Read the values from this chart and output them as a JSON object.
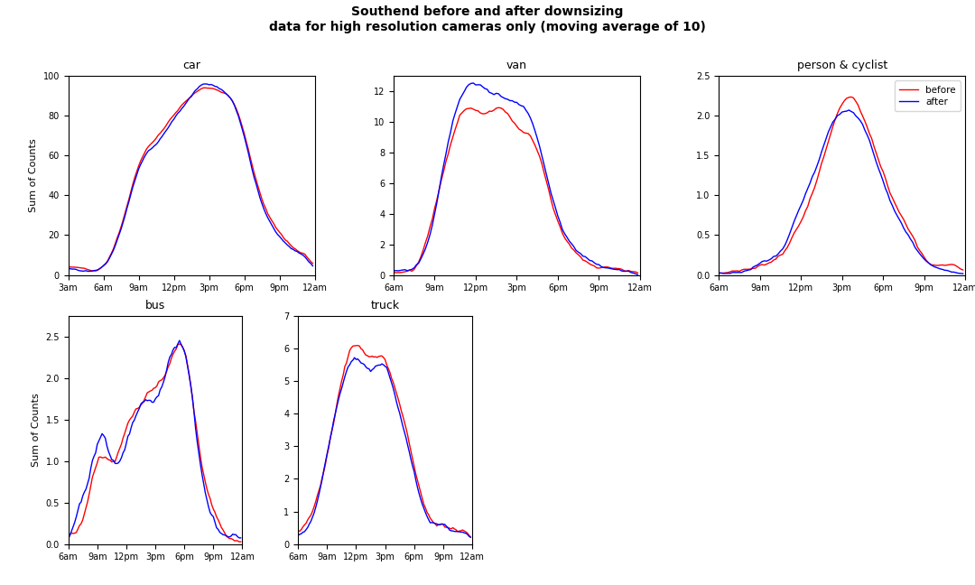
{
  "title_line1": "Southend before and after downsizing",
  "title_line2": "data for high resolution cameras only (moving average of 10)",
  "subplots": [
    "car",
    "van",
    "person & cyclist",
    "bus",
    "truck"
  ],
  "ylabel": "Sum of Counts",
  "legend_labels": [
    "before",
    "after"
  ],
  "legend_colors": [
    "red",
    "blue"
  ],
  "x_ticks_labels": {
    "car": [
      "3am",
      "6am",
      "9am",
      "12pm",
      "3pm",
      "6pm",
      "9pm",
      "12am"
    ],
    "van": [
      "6am",
      "9am",
      "12pm",
      "3pm",
      "6pm",
      "9pm",
      "12am"
    ],
    "person & cyclist": [
      "6am",
      "9am",
      "12pm",
      "3pm",
      "6pm",
      "9pm",
      "12am"
    ],
    "bus": [
      "6am",
      "9am",
      "12pm",
      "3pm",
      "6pm",
      "9pm",
      "12am"
    ],
    "truck": [
      "6am",
      "9am",
      "12pm",
      "3pm",
      "6pm",
      "9pm",
      "12am"
    ]
  },
  "ylims": {
    "car": [
      0,
      100
    ],
    "van": [
      0,
      13
    ],
    "person & cyclist": [
      0,
      2.5
    ],
    "bus": [
      0,
      2.75
    ],
    "truck": [
      0,
      7
    ]
  },
  "background_color": "#ffffff",
  "line_width": 1.0
}
